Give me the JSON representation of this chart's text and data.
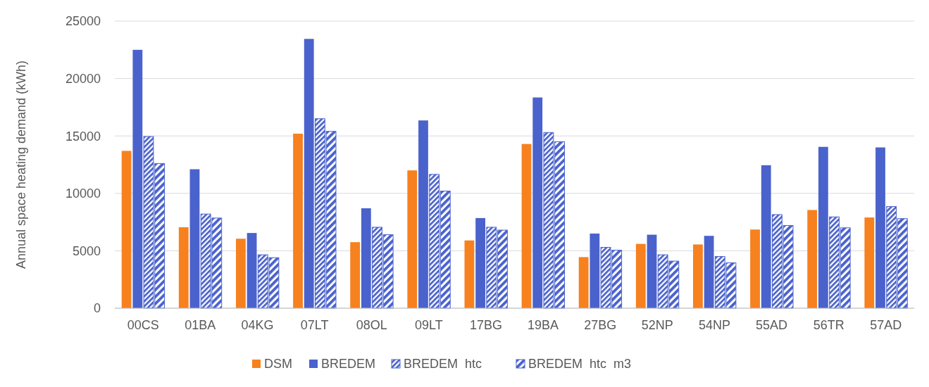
{
  "chart_data": {
    "type": "bar",
    "ylabel": "Annual space heating demand (kWh)",
    "categories": [
      "00CS",
      "01BA",
      "04KG",
      "07LT",
      "08OL",
      "09LT",
      "17BG",
      "19BA",
      "27BG",
      "52NP",
      "54NP",
      "55AD",
      "56TR",
      "57AD"
    ],
    "series": [
      {
        "name": "DSM",
        "color": "#f7811f",
        "values": [
          13700,
          7050,
          6050,
          15200,
          5750,
          12000,
          5900,
          14300,
          4450,
          5600,
          5550,
          6850,
          8550,
          7900
        ]
      },
      {
        "name": "BREDEM",
        "color": "#4a62cc",
        "values": [
          22500,
          12100,
          6550,
          23450,
          8700,
          16350,
          7850,
          18350,
          6500,
          6400,
          6300,
          12450,
          14050,
          14000
        ]
      },
      {
        "name": "BREDEM  htc",
        "color": "#4a62cc",
        "values": [
          14950,
          8200,
          4650,
          16500,
          7050,
          11650,
          7050,
          15300,
          5300,
          4650,
          4500,
          8150,
          7950,
          8850
        ]
      },
      {
        "name": "BREDEM  htc  m3",
        "color": "#4a62cc",
        "values": [
          12600,
          7850,
          4400,
          15400,
          6400,
          10200,
          6800,
          14500,
          5050,
          4100,
          3950,
          7200,
          7000,
          7800
        ]
      }
    ],
    "ylim": [
      0,
      25000
    ],
    "yticks": [
      0,
      5000,
      10000,
      15000,
      20000,
      25000
    ],
    "grid": "y",
    "legend": "bottom"
  }
}
